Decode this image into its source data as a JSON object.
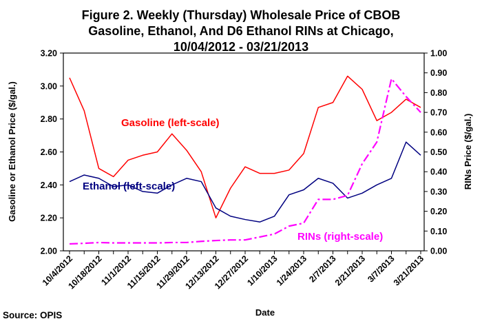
{
  "chart_data": {
    "type": "line",
    "title_lines": [
      "Figure 2. Weekly (Thursday) Wholesale Price of CBOB",
      "Gasoline, Ethanol, And D6 Ethanol RINs at Chicago,",
      "10/04/2012 - 03/21/2013"
    ],
    "xlabel": "Date",
    "ylabel_left": "Gasoline or Ethanol Price ($/gal.)",
    "ylabel_right": "RINs Price ($/gal.)",
    "x": [
      "10/4/2012",
      "10/11/2012",
      "10/18/2012",
      "10/25/2012",
      "11/1/2012",
      "11/8/2012",
      "11/15/2012",
      "11/22/2012",
      "11/29/2012",
      "12/6/2012",
      "12/13/2012",
      "12/20/2012",
      "12/27/2012",
      "1/3/2013",
      "1/10/2013",
      "1/17/2013",
      "1/24/2013",
      "1/31/2013",
      "2/7/2013",
      "2/14/2013",
      "2/21/2013",
      "2/28/2013",
      "3/7/2013",
      "3/14/2013",
      "3/21/2013"
    ],
    "x_tick_labels": [
      "10/4/2012",
      "10/18/2012",
      "11/1/2012",
      "11/15/2012",
      "11/29/2012",
      "12/13/2012",
      "12/27/2012",
      "1/10/2013",
      "1/24/2013",
      "2/7/2013",
      "2/21/2013",
      "3/7/2013",
      "3/21/2013"
    ],
    "ylim_left": [
      2.0,
      3.2
    ],
    "yticks_left": [
      "2.00",
      "2.20",
      "2.40",
      "2.60",
      "2.80",
      "3.00",
      "3.20"
    ],
    "ylim_right": [
      0.0,
      1.0
    ],
    "yticks_right": [
      "0.00",
      "0.10",
      "0.20",
      "0.30",
      "0.40",
      "0.50",
      "0.60",
      "0.70",
      "0.80",
      "0.90",
      "1.00"
    ],
    "series": [
      {
        "name": "Gasoline (left-scale)",
        "axis": "left",
        "color": "#ff0000",
        "dash": "solid",
        "values": [
          3.05,
          2.85,
          2.5,
          2.45,
          2.55,
          2.58,
          2.6,
          2.71,
          2.61,
          2.48,
          2.2,
          2.38,
          2.51,
          2.47,
          2.47,
          2.49,
          2.59,
          2.87,
          2.9,
          3.06,
          2.98,
          2.79,
          2.84,
          2.92,
          2.87
        ]
      },
      {
        "name": "Ethanol (left-scale)",
        "axis": "left",
        "color": "#000080",
        "dash": "solid",
        "values": [
          2.42,
          2.46,
          2.44,
          2.39,
          2.4,
          2.36,
          2.35,
          2.4,
          2.44,
          2.42,
          2.26,
          2.21,
          2.19,
          2.175,
          2.21,
          2.34,
          2.37,
          2.44,
          2.41,
          2.32,
          2.35,
          2.4,
          2.44,
          2.66,
          2.58
        ]
      },
      {
        "name": "RINs (right-scale)",
        "axis": "right",
        "color": "#ff00ff",
        "dash": "dashdot",
        "values": [
          0.035,
          0.038,
          0.042,
          0.04,
          0.04,
          0.04,
          0.04,
          0.042,
          0.042,
          0.048,
          0.052,
          0.055,
          0.055,
          0.07,
          0.085,
          0.125,
          0.14,
          0.26,
          0.26,
          0.28,
          0.44,
          0.55,
          0.87,
          0.78,
          0.7
        ]
      }
    ],
    "annotations": [
      {
        "text": "Gasoline (left-scale)",
        "color": "#ff0000"
      },
      {
        "text": "Ethanol (left-scale)",
        "color": "#000080"
      },
      {
        "text": "RINs (right-scale)",
        "color": "#ff00ff"
      }
    ],
    "grid": false,
    "legend": "none",
    "source": "Source: OPIS"
  }
}
